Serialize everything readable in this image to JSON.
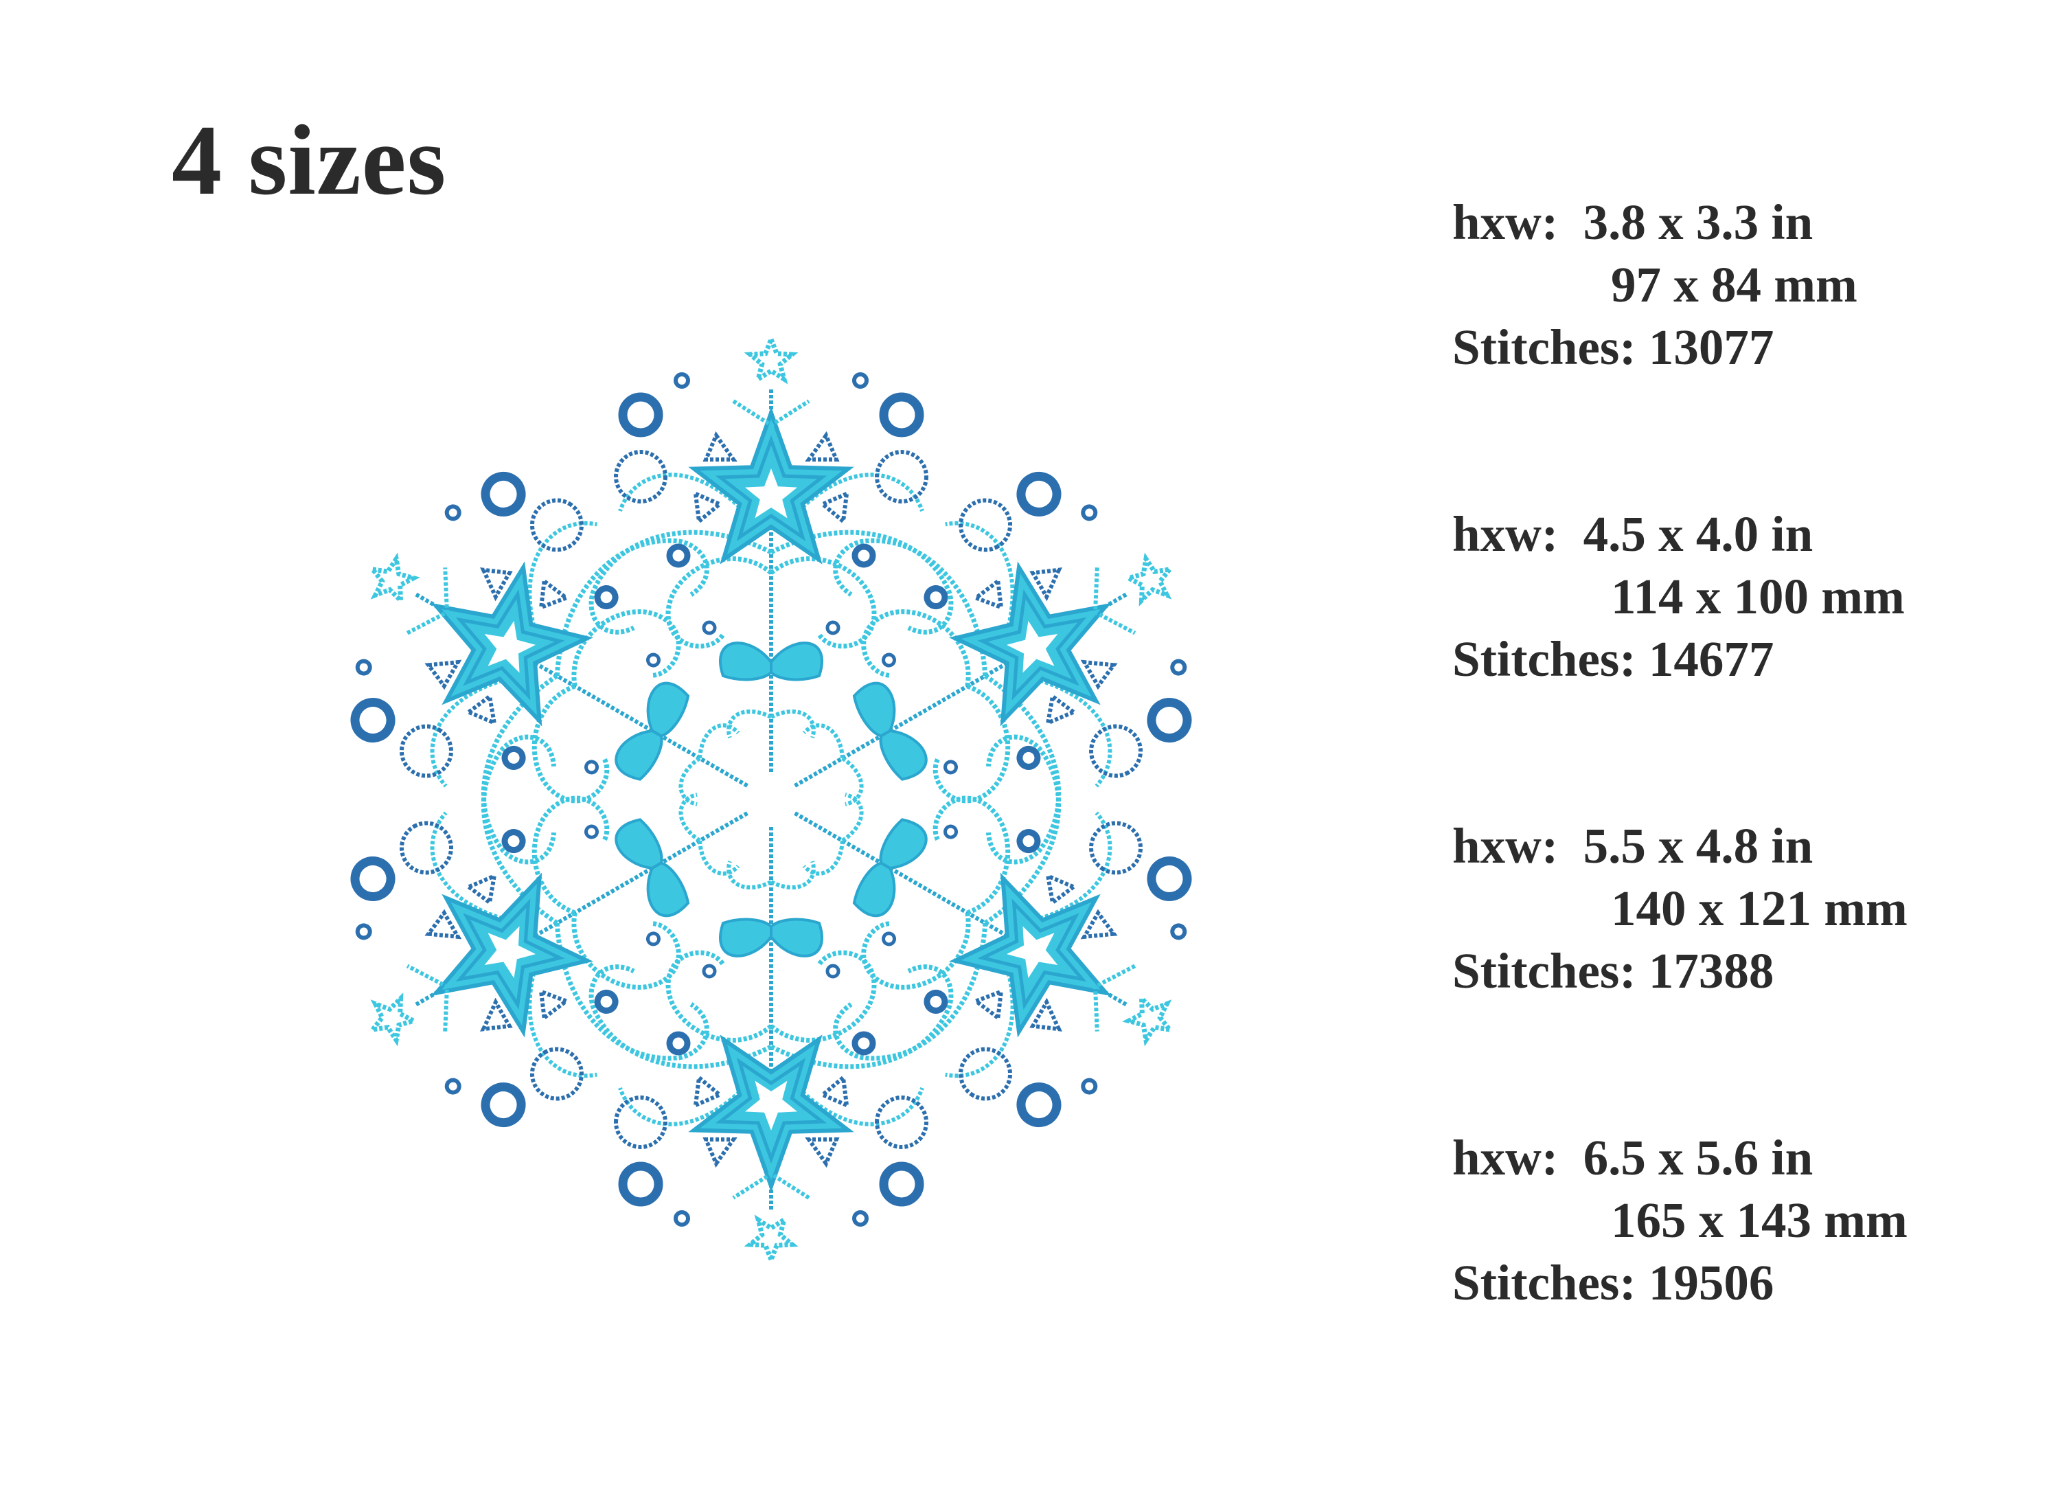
{
  "title": "4 sizes",
  "sizes": [
    {
      "hxw": "hxw:  3.8 x 3.3 in",
      "mm": "97 x 84 mm",
      "stitches": "Stitches: 13077"
    },
    {
      "hxw": "hxw:  4.5 x 4.0 in",
      "mm": "114 x 100 mm",
      "stitches": "Stitches: 14677"
    },
    {
      "hxw": "hxw:  5.5 x 4.8 in",
      "mm": "140 x 121 mm",
      "stitches": "Stitches: 17388"
    },
    {
      "hxw": "hxw:  6.5 x 5.6 in",
      "mm": "165 x 143 mm",
      "stitches": "Stitches: 19506"
    }
  ],
  "colors": {
    "thread_light": "#3cc6e0",
    "thread_mid": "#2aa6cf",
    "thread_dark": "#2c6fae",
    "text": "#2b2b2b"
  },
  "image": "snowflake-embroidery-design"
}
